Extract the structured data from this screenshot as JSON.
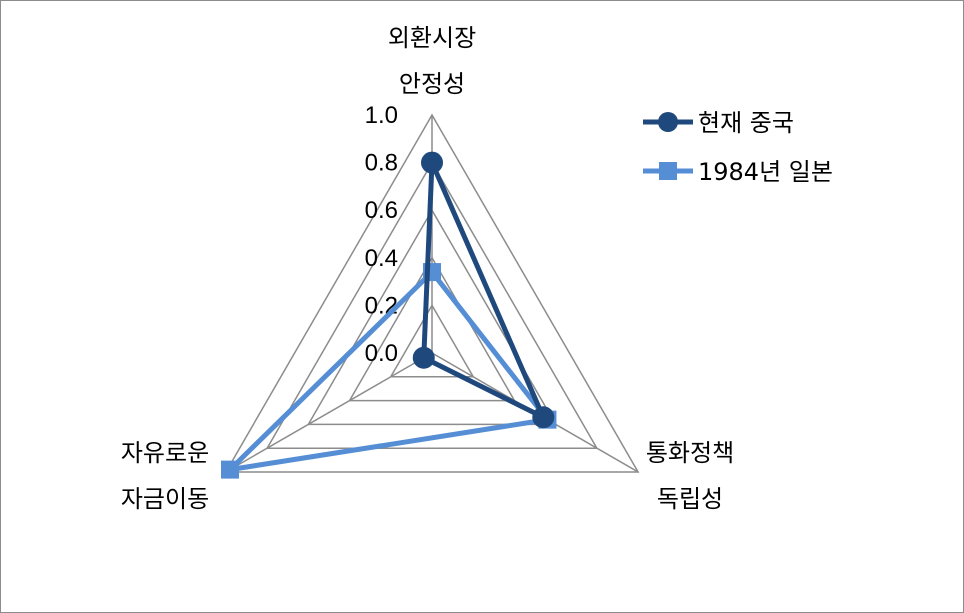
{
  "chart_data": {
    "type": "radar",
    "axes": [
      [
        "외환시장",
        "안정성"
      ],
      [
        "통화정책",
        "독립성"
      ],
      [
        "자유로운",
        "자금이동"
      ]
    ],
    "rlim": [
      0,
      1.0
    ],
    "ticks": [
      "0.0",
      "0.2",
      "0.4",
      "0.6",
      "0.8",
      "1.0"
    ],
    "grid": true,
    "legend_position": "right",
    "series": [
      {
        "name": "현재 중국",
        "values": [
          0.8,
          0.54,
          0.04
        ],
        "color": "#1f497d",
        "marker": "circle"
      },
      {
        "name": "1984년 일본",
        "values": [
          0.34,
          0.56,
          0.98
        ],
        "color": "#558ed5",
        "marker": "square"
      }
    ]
  }
}
